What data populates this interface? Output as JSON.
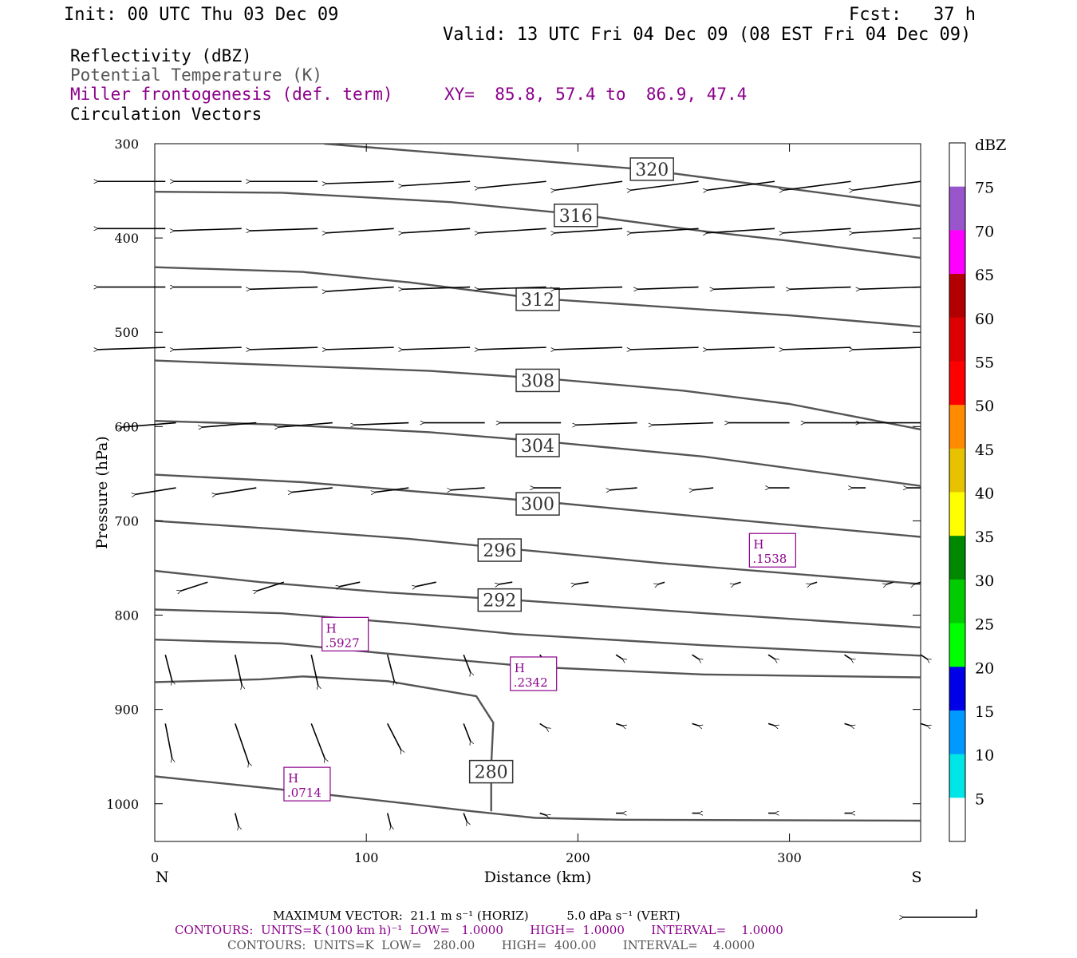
{
  "header": {
    "init": "Init: 00 UTC Thu 03 Dec 09",
    "fcst": "Fcst:   37 h",
    "valid": "Valid: 13 UTC Fri 04 Dec 09 (08 EST Fri 04 Dec 09)"
  },
  "legend": {
    "line1": "Reflectivity (dBZ)",
    "line2": "Potential Temperature (K)",
    "line3": "Miller frontogenesis (def. term)",
    "line4": "Circulation Vectors",
    "xy": "XY=  85.8, 57.4 to  86.9, 47.4"
  },
  "footer": {
    "max_vector": "MAXIMUM VECTOR:  21.1 m s⁻¹ (HORIZ)          5.0 dPa s⁻¹ (VERT)",
    "contours_fronto": "CONTOURS:  UNITS=K (100 km h)⁻¹  LOW=   1.0000       HIGH=  1.0000       INTERVAL=    1.0000",
    "contours_theta": "CONTOURS:  UNITS=K  LOW=   280.00       HIGH=  400.00       INTERVAL=    4.0000"
  },
  "colors": {
    "fronto": "#8b008b",
    "theta": "#555555"
  },
  "chart_data": {
    "type": "contour",
    "xlabel": "Distance (km)",
    "ylabel": "Pressure (hPa)",
    "xlim": [
      0,
      362
    ],
    "ylim": [
      1040,
      300
    ],
    "x_ticks": [
      0,
      100,
      200,
      300
    ],
    "y_ticks": [
      300,
      400,
      500,
      600,
      700,
      800,
      900,
      1000
    ],
    "x_end_labels": {
      "left": "N",
      "right": "S"
    },
    "theta_contours": [
      {
        "label": "320",
        "label_pos": [
          235,
          327
        ],
        "points": [
          [
            80,
            300
          ],
          [
            230,
            327
          ],
          [
            362,
            366
          ]
        ]
      },
      {
        "label": "316",
        "label_pos": [
          199,
          376
        ],
        "points": [
          [
            0,
            351
          ],
          [
            60,
            352
          ],
          [
            140,
            362
          ],
          [
            200,
            375
          ],
          [
            260,
            393
          ],
          [
            300,
            403
          ],
          [
            362,
            421
          ]
        ]
      },
      {
        "label": "312",
        "label_pos": [
          181,
          465
        ],
        "points": [
          [
            0,
            431
          ],
          [
            70,
            436
          ],
          [
            120,
            447
          ],
          [
            180,
            464
          ],
          [
            240,
            473
          ],
          [
            300,
            482
          ],
          [
            362,
            494
          ]
        ]
      },
      {
        "label": "308",
        "label_pos": [
          181,
          551
        ],
        "points": [
          [
            0,
            530
          ],
          [
            60,
            535
          ],
          [
            130,
            541
          ],
          [
            190,
            550
          ],
          [
            250,
            562
          ],
          [
            300,
            576
          ],
          [
            362,
            603
          ]
        ]
      },
      {
        "label": "304",
        "label_pos": [
          181,
          620
        ],
        "points": [
          [
            0,
            594
          ],
          [
            60,
            598
          ],
          [
            130,
            606
          ],
          [
            190,
            617
          ],
          [
            260,
            632
          ],
          [
            362,
            663
          ]
        ]
      },
      {
        "label": "300",
        "label_pos": [
          181,
          682
        ],
        "points": [
          [
            0,
            651
          ],
          [
            70,
            659
          ],
          [
            130,
            670
          ],
          [
            190,
            681
          ],
          [
            260,
            696
          ],
          [
            362,
            717
          ]
        ]
      },
      {
        "label": "296",
        "label_pos": [
          163,
          731
        ],
        "points": [
          [
            0,
            700
          ],
          [
            60,
            709
          ],
          [
            120,
            719
          ],
          [
            170,
            730
          ],
          [
            240,
            745
          ],
          [
            362,
            767
          ]
        ]
      },
      {
        "label": "292",
        "label_pos": [
          163,
          784
        ],
        "points": [
          [
            0,
            753
          ],
          [
            50,
            765
          ],
          [
            110,
            776
          ],
          [
            170,
            784
          ],
          [
            260,
            798
          ],
          [
            362,
            813
          ]
        ]
      },
      {
        "label": "",
        "label_pos": null,
        "points": [
          [
            0,
            794
          ],
          [
            60,
            798
          ],
          [
            120,
            809
          ],
          [
            170,
            820
          ],
          [
            260,
            832
          ],
          [
            362,
            843
          ]
        ]
      },
      {
        "label": "",
        "label_pos": null,
        "points": [
          [
            0,
            826
          ],
          [
            60,
            830
          ],
          [
            120,
            843
          ],
          [
            180,
            855
          ],
          [
            260,
            863
          ],
          [
            362,
            866
          ]
        ]
      },
      {
        "label": "280",
        "label_pos": [
          159,
          966
        ],
        "points": [
          [
            0,
            871
          ],
          [
            50,
            868
          ],
          [
            70,
            865
          ],
          [
            110,
            870
          ],
          [
            152,
            886
          ],
          [
            160,
            914
          ],
          [
            159,
            960
          ],
          [
            159,
            1008
          ]
        ]
      },
      {
        "label": "",
        "label_pos": null,
        "points": [
          [
            0,
            971
          ],
          [
            60,
            985
          ],
          [
            120,
            1000
          ],
          [
            150,
            1008
          ],
          [
            180,
            1015
          ],
          [
            220,
            1017
          ],
          [
            362,
            1018
          ]
        ]
      }
    ],
    "frontogenesis_highs": [
      {
        "label": "H",
        "value": ".1538",
        "x": 292,
        "y": 732
      },
      {
        "label": "H",
        "value": ".5927",
        "x": 90,
        "y": 821
      },
      {
        "label": "H",
        "value": ".2342",
        "x": 179,
        "y": 863
      },
      {
        "label": "H",
        "value": ".0714",
        "x": 72,
        "y": 980
      }
    ],
    "vectors": {
      "max_horizontal": "21.1 m s⁻¹",
      "max_vertical": "5.0 dPa s⁻¹",
      "rows": [
        {
          "p": 340,
          "x": [
            5,
            41,
            77,
            113,
            149,
            185,
            221,
            257,
            293,
            329,
            362
          ],
          "u": [
            -10,
            -10,
            -10,
            -10,
            -10,
            -10,
            -10,
            -10,
            -10,
            -10,
            -10
          ],
          "w": [
            0,
            0,
            0,
            0.05,
            0.1,
            0.15,
            0.2,
            0.2,
            0.2,
            0.2,
            0.2
          ]
        },
        {
          "p": 390,
          "x": [
            5,
            41,
            77,
            113,
            149,
            185,
            221,
            257,
            293,
            329,
            362
          ],
          "u": [
            -10,
            -10,
            -10,
            -10,
            -10,
            -10,
            -10,
            -10,
            -10,
            -10,
            -10
          ],
          "w": [
            0,
            0.05,
            0.05,
            0.1,
            0.1,
            0.1,
            0.1,
            0.1,
            0.1,
            0.1,
            0.1
          ]
        },
        {
          "p": 452,
          "x": [
            5,
            41,
            77,
            113,
            149,
            185,
            221,
            257,
            293,
            329,
            362
          ],
          "u": [
            -10,
            -10,
            -10,
            -10,
            -10,
            -10,
            -10,
            -9,
            -9,
            -9,
            -9
          ],
          "w": [
            0,
            0,
            0.05,
            0.1,
            0.05,
            0.05,
            0.05,
            0.05,
            0.05,
            0.05,
            0.05
          ]
        },
        {
          "p": 516,
          "x": [
            5,
            41,
            77,
            113,
            149,
            185,
            221,
            257,
            293,
            329,
            362
          ],
          "u": [
            -10,
            -10,
            -10,
            -10,
            -10,
            -10,
            -10,
            -10,
            -10,
            -10,
            -10
          ],
          "w": [
            0.05,
            0.05,
            0.05,
            0.05,
            0.05,
            0.05,
            0.05,
            0.05,
            0.05,
            0.05,
            0.05
          ]
        },
        {
          "p": 596,
          "x": [
            10,
            48,
            84,
            120,
            156,
            192,
            228,
            264,
            300,
            336,
            362
          ],
          "u": [
            -8,
            -8,
            -8,
            -8,
            -9,
            -9,
            -9,
            -9,
            -9,
            -9,
            -9
          ],
          "w": [
            0.1,
            0.1,
            0.1,
            0.05,
            0,
            0,
            0.05,
            0.05,
            0,
            0,
            0
          ]
        },
        {
          "p": 665,
          "x": [
            10,
            48,
            84,
            120,
            156,
            192,
            228,
            264,
            300,
            336,
            362
          ],
          "u": [
            -6,
            -6,
            -6,
            -5,
            -5,
            -4,
            -4,
            -3,
            -3,
            -2,
            -2
          ],
          "w": [
            0.15,
            0.15,
            0.1,
            0.1,
            0.05,
            0,
            0.05,
            0.05,
            0,
            0,
            0
          ]
        },
        {
          "p": 765,
          "x": [
            25,
            61,
            97,
            133,
            169,
            205,
            241,
            277,
            313,
            349,
            362
          ],
          "u": [
            -4,
            -4,
            -3,
            -3,
            -2,
            -2,
            -1,
            -1,
            -1,
            -1,
            -1
          ],
          "w": [
            0.2,
            0.2,
            0.1,
            0.1,
            0.05,
            0.05,
            0.05,
            0.05,
            0.05,
            0.05,
            0.05
          ]
        },
        {
          "p": 842,
          "x": [
            5,
            38,
            74,
            110,
            146,
            182,
            218,
            254,
            290,
            326,
            362
          ],
          "u": [
            1,
            1,
            1,
            1,
            1,
            1,
            1,
            1,
            1,
            1,
            1
          ],
          "w": [
            0.6,
            0.7,
            0.7,
            0.6,
            0.4,
            0.2,
            0.1,
            0.1,
            0.1,
            0.1,
            0.1
          ]
        },
        {
          "p": 915,
          "x": [
            5,
            38,
            74,
            110,
            146,
            182,
            218,
            254,
            290,
            326,
            362
          ],
          "u": [
            1,
            2,
            2,
            2,
            1,
            1,
            1,
            1,
            1,
            1,
            1
          ],
          "w": [
            0.8,
            0.9,
            0.8,
            0.6,
            0.4,
            0.1,
            0.05,
            0.05,
            0.05,
            0.05,
            0.05
          ]
        },
        {
          "p": 1010,
          "x": [
            38,
            110,
            146,
            182,
            218,
            254,
            290,
            326
          ],
          "u": [
            0.5,
            0.5,
            0.5,
            1,
            1,
            1,
            1,
            1
          ],
          "w": [
            0.3,
            0.3,
            0.2,
            0.05,
            0,
            0,
            0,
            0
          ]
        }
      ]
    },
    "colorbar": {
      "label": "dBZ",
      "levels": [
        5,
        10,
        15,
        20,
        25,
        30,
        35,
        40,
        45,
        50,
        55,
        60,
        65,
        70,
        75
      ],
      "colors": [
        "#ffffff",
        "#00e5e5",
        "#0099ff",
        "#0000e6",
        "#00ff00",
        "#00cc00",
        "#008800",
        "#ffff00",
        "#e6c200",
        "#ff8c00",
        "#ff0000",
        "#dd0000",
        "#b20000",
        "#ff00ff",
        "#9955cc",
        "#ffffff"
      ]
    }
  }
}
